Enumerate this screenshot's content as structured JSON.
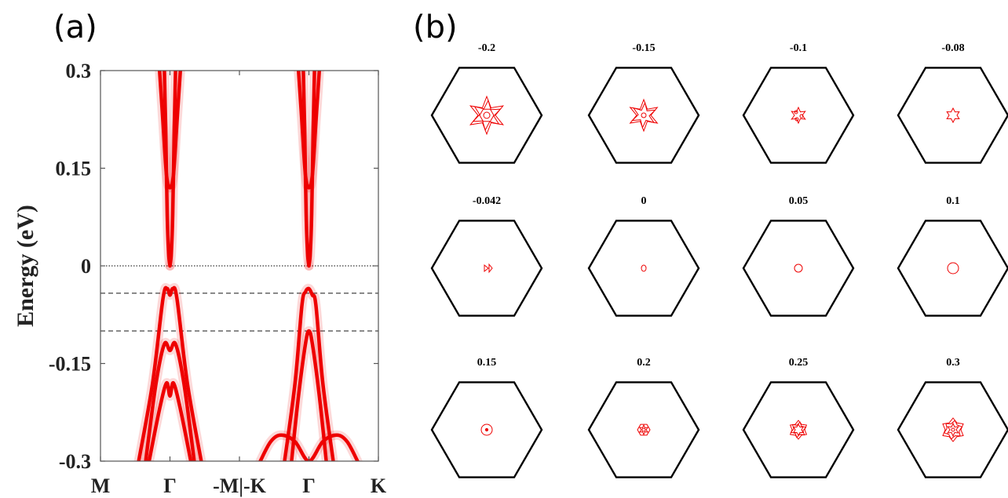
{
  "panels": {
    "a_label": "(a)",
    "b_label": "(b)"
  },
  "chart_data": [
    {
      "type": "line",
      "ylabel": "Energy (eV)",
      "xlabel": "",
      "ylim": [
        -0.3,
        0.3
      ],
      "yticks": [
        0.3,
        0.15,
        0,
        -0.15,
        -0.3
      ],
      "ytick_labels": [
        "0.3",
        "0.15",
        "0",
        "-0.15",
        "-0.3"
      ],
      "xtick_labels": [
        "M",
        "Γ",
        "-M|-K",
        "Γ",
        "K"
      ],
      "xticks": [
        0,
        1,
        2,
        3,
        4
      ],
      "reference_lines": [
        {
          "y": 0,
          "style": "dotted"
        },
        {
          "y": -0.042,
          "style": "dashed"
        },
        {
          "y": -0.1,
          "style": "dashed"
        }
      ],
      "color": "#ee0000",
      "grid": false,
      "series": [
        {
          "x": [
            0.92,
            0.94,
            0.96,
            0.98,
            1.0
          ],
          "y": [
            0.3,
            0.2,
            0.08,
            0.02,
            0.0
          ]
        },
        {
          "x": [
            1.0,
            1.02,
            1.04,
            1.06,
            1.08
          ],
          "y": [
            0.0,
            0.02,
            0.08,
            0.2,
            0.3
          ]
        },
        {
          "x": [
            0.85,
            0.9,
            0.95,
            1.0,
            1.05,
            1.1,
            1.15
          ],
          "y": [
            0.3,
            0.22,
            0.14,
            0.12,
            0.14,
            0.22,
            0.3
          ]
        },
        {
          "x": [
            0.55,
            0.75,
            0.9,
            0.96,
            1.0,
            1.04,
            1.1,
            1.25,
            1.45
          ],
          "y": [
            -0.3,
            -0.18,
            -0.05,
            -0.035,
            -0.045,
            -0.035,
            -0.05,
            -0.18,
            -0.3
          ]
        },
        {
          "x": [
            0.65,
            0.8,
            0.92,
            1.0,
            1.08,
            1.2,
            1.35
          ],
          "y": [
            -0.3,
            -0.18,
            -0.12,
            -0.13,
            -0.12,
            -0.18,
            -0.3
          ]
        },
        {
          "x": [
            0.7,
            0.85,
            0.95,
            1.0,
            1.05,
            1.15,
            1.3
          ],
          "y": [
            -0.3,
            -0.22,
            -0.18,
            -0.2,
            -0.18,
            -0.22,
            -0.3
          ]
        },
        {
          "x": [
            2.92,
            2.94,
            2.96,
            2.98,
            3.0
          ],
          "y": [
            0.3,
            0.2,
            0.08,
            0.02,
            0.0
          ]
        },
        {
          "x": [
            3.0,
            3.02,
            3.04,
            3.06,
            3.08
          ],
          "y": [
            0.0,
            0.02,
            0.08,
            0.2,
            0.3
          ]
        },
        {
          "x": [
            2.85,
            2.9,
            2.95,
            3.0,
            3.05,
            3.1,
            3.15
          ],
          "y": [
            0.3,
            0.22,
            0.14,
            0.12,
            0.14,
            0.22,
            0.3
          ]
        },
        {
          "x": [
            2.65,
            2.8,
            2.9,
            2.95,
            3.0,
            3.05,
            3.1,
            3.2,
            3.35
          ],
          "y": [
            -0.3,
            -0.18,
            -0.06,
            -0.04,
            -0.035,
            -0.045,
            -0.06,
            -0.18,
            -0.3
          ]
        },
        {
          "x": [
            2.75,
            2.85,
            2.95,
            3.0,
            3.05,
            3.15,
            3.25
          ],
          "y": [
            -0.3,
            -0.2,
            -0.12,
            -0.1,
            -0.12,
            -0.2,
            -0.3
          ]
        },
        {
          "x": [
            2.3,
            2.45,
            2.6,
            2.8,
            3.0,
            3.2,
            3.4,
            3.55,
            3.7
          ],
          "y": [
            -0.3,
            -0.27,
            -0.26,
            -0.27,
            -0.3,
            -0.27,
            -0.26,
            -0.27,
            -0.3
          ]
        }
      ]
    },
    {
      "type": "other",
      "description_free": true,
      "subplots": [
        {
          "title": "-0.2",
          "contour": "star-large"
        },
        {
          "title": "-0.15",
          "contour": "star-medium"
        },
        {
          "title": "-0.1",
          "contour": "dots-small"
        },
        {
          "title": "-0.08",
          "contour": "star-small"
        },
        {
          "title": "-0.042",
          "contour": "dots-tiny"
        },
        {
          "title": "0",
          "contour": "circle-tiny"
        },
        {
          "title": "0.05",
          "contour": "circle-small"
        },
        {
          "title": "0.1",
          "contour": "circle-medium"
        },
        {
          "title": "0.15",
          "contour": "circle-medium-dot"
        },
        {
          "title": "0.2",
          "contour": "hex-small"
        },
        {
          "title": "0.25",
          "contour": "hex-medium"
        },
        {
          "title": "0.3",
          "contour": "hex-large"
        }
      ]
    }
  ]
}
